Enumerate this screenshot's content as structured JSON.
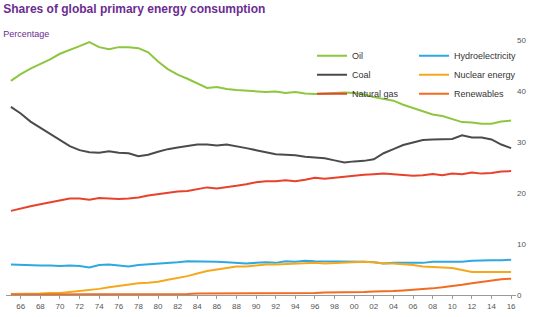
{
  "chart_data": {
    "type": "line",
    "title": "Shares of global primary energy consumption",
    "subtitle": "Percentage",
    "categories": [
      null,
      "66",
      null,
      "68",
      null,
      "70",
      null,
      "72",
      null,
      "74",
      null,
      "76",
      null,
      "78",
      null,
      "80",
      null,
      "82",
      null,
      "84",
      null,
      "86",
      null,
      "88",
      null,
      "90",
      null,
      "92",
      null,
      "94",
      null,
      "96",
      null,
      "98",
      null,
      "00",
      null,
      "02",
      null,
      "04",
      null,
      "06",
      null,
      "08",
      null,
      "10",
      null,
      "12",
      null,
      "14",
      null,
      "16"
    ],
    "series": [
      {
        "name": "Oil",
        "color": "#8dc63f",
        "values": [
          42.0,
          43.3,
          44.4,
          45.3,
          46.2,
          47.3,
          48.0,
          48.8,
          49.6,
          48.6,
          48.2,
          48.6,
          48.6,
          48.4,
          47.6,
          45.8,
          44.3,
          43.2,
          42.4,
          41.5,
          40.6,
          40.8,
          40.4,
          40.2,
          40.1,
          40.0,
          39.8,
          39.9,
          39.6,
          39.8,
          39.5,
          39.4,
          39.5,
          39.5,
          39.7,
          39.6,
          39.3,
          38.8,
          38.4,
          38.1,
          37.3,
          36.7,
          36.0,
          35.4,
          35.1,
          34.5,
          33.9,
          33.8,
          33.6,
          33.6,
          34.0,
          34.2
        ]
      },
      {
        "name": "Coal",
        "color": "#4b4b4d",
        "values": [
          36.9,
          35.6,
          34.0,
          32.8,
          31.7,
          30.4,
          29.2,
          28.4,
          28.0,
          27.9,
          28.2,
          27.9,
          27.8,
          27.2,
          27.5,
          28.1,
          28.6,
          28.9,
          29.2,
          29.5,
          29.5,
          29.3,
          29.5,
          29.2,
          28.8,
          28.4,
          28.0,
          27.6,
          27.5,
          27.4,
          27.1,
          26.9,
          26.8,
          26.4,
          26.0,
          26.2,
          26.3,
          26.6,
          27.8,
          28.6,
          29.4,
          29.9,
          30.4,
          30.5,
          30.5,
          30.6,
          31.3,
          30.9,
          30.9,
          30.5,
          29.5,
          28.8
        ]
      },
      {
        "name": "Natural gas",
        "color": "#e8412c",
        "values": [
          16.5,
          17.0,
          17.4,
          17.8,
          18.2,
          18.6,
          18.9,
          18.9,
          18.7,
          19.0,
          18.9,
          18.8,
          18.9,
          19.1,
          19.5,
          19.8,
          20.1,
          20.3,
          20.4,
          20.8,
          21.1,
          20.9,
          21.1,
          21.4,
          21.7,
          22.1,
          22.3,
          22.3,
          22.5,
          22.3,
          22.6,
          23.0,
          22.8,
          23.0,
          23.3,
          23.4,
          23.6,
          23.7,
          23.8,
          23.7,
          23.5,
          23.4,
          23.5,
          23.7,
          23.5,
          23.8,
          23.7,
          24.0,
          23.8,
          23.9,
          24.2,
          24.3
        ]
      },
      {
        "name": "Hydroelectricity",
        "color": "#2fa8e0",
        "values": [
          6.0,
          5.9,
          5.8,
          5.8,
          5.8,
          5.7,
          5.8,
          5.7,
          5.4,
          5.9,
          6.0,
          5.8,
          5.6,
          5.9,
          6.0,
          6.1,
          6.2,
          6.4,
          6.6,
          6.6,
          6.6,
          6.5,
          6.4,
          6.3,
          6.2,
          6.3,
          6.4,
          6.3,
          6.6,
          6.5,
          6.7,
          6.6,
          6.6,
          6.6,
          6.6,
          6.6,
          6.5,
          6.4,
          6.2,
          6.3,
          6.3,
          6.4,
          6.3,
          6.5,
          6.5,
          6.5,
          6.5,
          6.7,
          6.8,
          6.8,
          6.8,
          6.9
        ]
      },
      {
        "name": "Nuclear energy",
        "color": "#f6a81c",
        "values": [
          0.2,
          0.2,
          0.3,
          0.3,
          0.4,
          0.4,
          0.6,
          0.8,
          0.9,
          1.2,
          1.5,
          1.8,
          2.1,
          2.3,
          2.4,
          2.6,
          3.0,
          3.3,
          3.7,
          4.2,
          4.7,
          5.0,
          5.3,
          5.6,
          5.6,
          5.8,
          6.0,
          6.0,
          6.1,
          6.1,
          6.3,
          6.3,
          6.2,
          6.3,
          6.4,
          6.4,
          6.5,
          6.4,
          6.2,
          6.2,
          6.1,
          5.9,
          5.6,
          5.5,
          5.4,
          5.3,
          4.9,
          4.5,
          4.5,
          4.5,
          4.5,
          4.5
        ]
      },
      {
        "name": "Renewables",
        "color": "#f26b21",
        "values": [
          0.1,
          0.1,
          0.1,
          0.1,
          0.1,
          0.1,
          0.1,
          0.1,
          0.1,
          0.1,
          0.1,
          0.1,
          0.1,
          0.1,
          0.1,
          0.1,
          0.2,
          0.2,
          0.2,
          0.3,
          0.3,
          0.3,
          0.3,
          0.3,
          0.4,
          0.4,
          0.4,
          0.4,
          0.4,
          0.4,
          0.4,
          0.4,
          0.5,
          0.5,
          0.5,
          0.5,
          0.6,
          0.7,
          0.7,
          0.8,
          0.9,
          1.0,
          1.1,
          1.3,
          1.5,
          1.7,
          2.0,
          2.3,
          2.6,
          2.8,
          3.1,
          3.2
        ]
      }
    ],
    "ylim": [
      0,
      50
    ],
    "yticks": [
      0,
      10,
      20,
      30,
      40,
      50
    ],
    "grid": false,
    "legend": "top-right"
  }
}
